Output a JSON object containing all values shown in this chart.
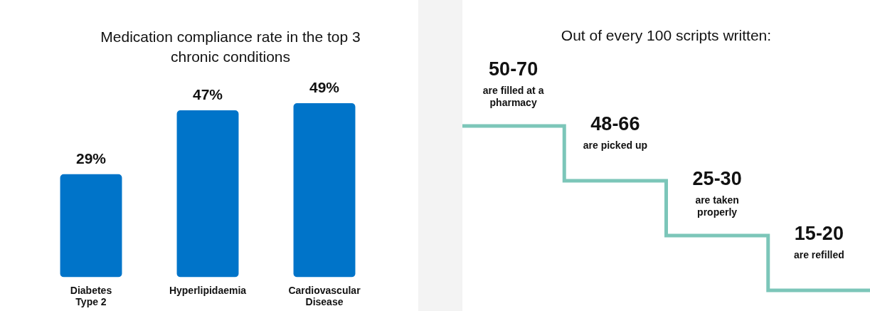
{
  "chart_data": [
    {
      "type": "bar",
      "title": "Medication compliance rate in the top 3 chronic conditions",
      "categories": [
        "Diabetes Type 2",
        "Hyperlipidaemia",
        "Cardiovascular Disease"
      ],
      "values": [
        29,
        47,
        49
      ],
      "color": "#0074c9",
      "value_labels": [
        "29%",
        "47%",
        "49%"
      ],
      "grid": false,
      "legend": false
    },
    {
      "type": "other",
      "title": "Out of every 100 scripts written:",
      "categories": [
        "are filled at a pharmacy",
        "are picked up",
        "are taken properly",
        "are refilled"
      ],
      "value_labels": [
        "50-70",
        "48-66",
        "25-30",
        "15-20"
      ],
      "color": "#7cc6b9"
    }
  ]
}
